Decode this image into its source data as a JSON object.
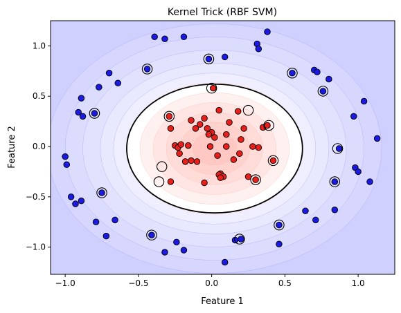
{
  "chart_data": {
    "type": "scatter",
    "title": "Kernel Trick (RBF SVM)",
    "xlabel": "Feature 1",
    "ylabel": "Feature 2",
    "xlim": [
      -1.1,
      1.25
    ],
    "ylim": [
      -1.27,
      1.25
    ],
    "xticks": [
      -1.0,
      -0.5,
      0.0,
      0.5,
      1.0
    ],
    "xtick_labels": [
      "−1.0",
      "−0.5",
      "0.0",
      "0.5",
      "1.0"
    ],
    "yticks": [
      -1.0,
      -0.5,
      0.0,
      0.5,
      1.0
    ],
    "ytick_labels": [
      "−1.0",
      "−0.5",
      "0.0",
      "0.5",
      "1.0"
    ],
    "grid": false,
    "colors": {
      "outer_class": "#1a1ae0",
      "inner_class": "#e8201c",
      "background_outer": "#d0d0ff",
      "background_inner": "#ffe8e8",
      "boundary": "#000000"
    },
    "decision_boundary": {
      "center": [
        0.02,
        -0.02
      ],
      "rx": 0.6,
      "ry": 0.64
    },
    "series": [
      {
        "class": "outer",
        "x": [
          -0.39,
          -0.32,
          -0.19,
          0.38,
          -0.02,
          0.09,
          0.31,
          0.32,
          -0.44,
          0.55,
          0.7,
          0.72,
          0.76,
          0.8,
          -0.77,
          -0.7,
          -0.64,
          -0.89,
          -0.8,
          -0.91,
          -0.88,
          0.97,
          1.04,
          -1.0,
          -0.99,
          0.87,
          1.13,
          0.98,
          1.0,
          1.08,
          0.84,
          -0.75,
          -0.96,
          -0.93,
          -0.89,
          -0.79,
          -0.66,
          0.64,
          0.84,
          0.71,
          -0.41,
          -0.72,
          -0.24,
          -0.32,
          -0.19,
          0.16,
          0.2,
          0.46,
          0.46,
          0.09
        ],
        "y": [
          1.09,
          1.07,
          1.09,
          1.14,
          0.87,
          0.89,
          1.02,
          0.97,
          0.77,
          0.73,
          0.76,
          0.74,
          0.55,
          0.67,
          0.59,
          0.73,
          0.63,
          0.48,
          0.33,
          0.34,
          0.3,
          0.3,
          0.45,
          -0.1,
          -0.18,
          -0.02,
          0.08,
          -0.21,
          -0.25,
          -0.35,
          -0.35,
          -0.46,
          -0.5,
          -0.57,
          -0.54,
          -0.75,
          -0.73,
          -0.64,
          -0.63,
          -0.73,
          -0.88,
          -0.89,
          -0.95,
          -1.05,
          -1.03,
          -0.93,
          -0.92,
          -0.78,
          -0.97,
          -1.15
        ]
      },
      {
        "class": "inner",
        "x": [
          -0.29,
          -0.28,
          -0.25,
          -0.23,
          -0.22,
          -0.21,
          -0.18,
          -0.16,
          -0.14,
          -0.11,
          -0.08,
          -0.05,
          -0.03,
          -0.01,
          0.0,
          0.01,
          0.02,
          0.04,
          0.05,
          0.06,
          0.08,
          0.1,
          0.12,
          0.15,
          0.18,
          0.2,
          0.22,
          0.25,
          0.28,
          0.3,
          0.32,
          0.35,
          0.38,
          0.42,
          -0.1,
          -0.28,
          0.05,
          0.19,
          -0.02,
          -0.14,
          0.1,
          0.06,
          -0.05
        ],
        "y": [
          0.3,
          0.18,
          0.01,
          -0.01,
          -0.07,
          0.02,
          -0.15,
          0.01,
          0.26,
          0.18,
          0.22,
          0.28,
          0.18,
          0.0,
          0.14,
          0.58,
          0.09,
          -0.09,
          0.36,
          -0.27,
          -0.3,
          0.12,
          0.24,
          -0.13,
          0.35,
          0.07,
          0.18,
          -0.3,
          0.0,
          -0.33,
          -0.01,
          0.19,
          0.21,
          -0.14,
          -0.15,
          -0.35,
          -0.28,
          -0.07,
          0.12,
          -0.14,
          0.0,
          -0.31,
          -0.36
        ]
      }
    ],
    "support_vectors": [
      [
        -0.02,
        0.87
      ],
      [
        -0.44,
        0.77
      ],
      [
        0.55,
        0.73
      ],
      [
        0.76,
        0.55
      ],
      [
        -0.8,
        0.33
      ],
      [
        0.86,
        -0.02
      ],
      [
        0.84,
        -0.35
      ],
      [
        -0.75,
        -0.46
      ],
      [
        0.46,
        -0.78
      ],
      [
        -0.41,
        -0.88
      ],
      [
        0.19,
        -0.92
      ],
      [
        0.0,
        0.58
      ],
      [
        -0.29,
        0.3
      ],
      [
        0.25,
        0.36
      ],
      [
        0.39,
        0.21
      ],
      [
        0.42,
        -0.14
      ],
      [
        -0.34,
        -0.2
      ],
      [
        -0.36,
        -0.35
      ],
      [
        0.3,
        -0.33
      ]
    ]
  }
}
